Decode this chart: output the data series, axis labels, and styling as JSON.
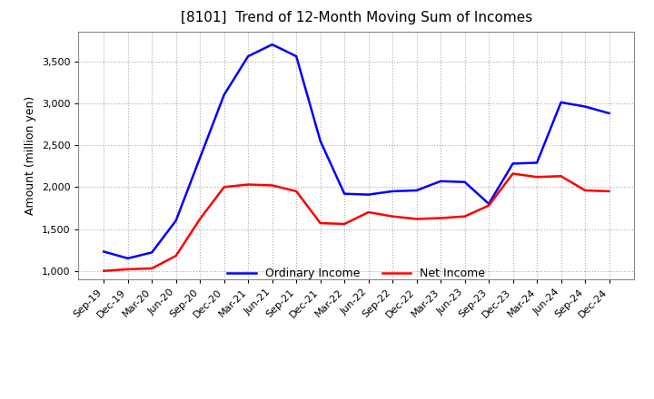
{
  "title": "[8101]  Trend of 12-Month Moving Sum of Incomes",
  "ylabel": "Amount (million yen)",
  "ylim": [
    900,
    3850
  ],
  "yticks": [
    1000,
    1500,
    2000,
    2500,
    3000,
    3500
  ],
  "x_labels": [
    "Sep-19",
    "Dec-19",
    "Mar-20",
    "Jun-20",
    "Sep-20",
    "Dec-20",
    "Mar-21",
    "Jun-21",
    "Sep-21",
    "Dec-21",
    "Mar-22",
    "Jun-22",
    "Sep-22",
    "Dec-22",
    "Mar-23",
    "Jun-23",
    "Sep-23",
    "Dec-23",
    "Mar-24",
    "Jun-24",
    "Sep-24",
    "Dec-24"
  ],
  "ordinary_income": [
    1230,
    1150,
    1220,
    1600,
    2350,
    3100,
    3560,
    3700,
    3560,
    2550,
    1920,
    1910,
    1950,
    1960,
    2070,
    2060,
    1800,
    2280,
    2290,
    3010,
    2960,
    2880
  ],
  "net_income": [
    1000,
    1020,
    1030,
    1180,
    1620,
    2000,
    2030,
    2020,
    1950,
    1570,
    1560,
    1700,
    1650,
    1620,
    1630,
    1650,
    1780,
    2160,
    2120,
    2130,
    1960,
    1950
  ],
  "ordinary_color": "#0000ff",
  "net_color": "#ff0000",
  "grid_color": "#aaaaaa",
  "background_color": "#ffffff",
  "title_fontsize": 11,
  "axis_fontsize": 9,
  "tick_fontsize": 8,
  "legend_fontsize": 9
}
